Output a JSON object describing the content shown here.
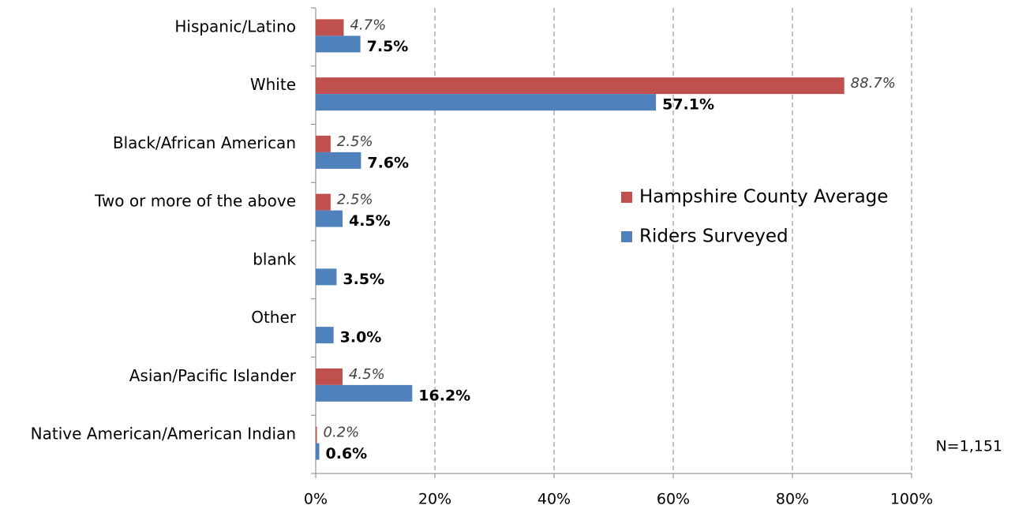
{
  "chart_data": {
    "type": "hbar",
    "categories": [
      "Hispanic/Latino",
      "White",
      "Black/African American",
      "Two or more of the above",
      "blank",
      "Other",
      "Asian/Pacific Islander",
      "Native American/American Indian"
    ],
    "series": [
      {
        "name": "Hampshire County Average",
        "color": "#c0504d",
        "values": [
          4.7,
          88.7,
          2.5,
          2.5,
          null,
          null,
          4.5,
          0.2
        ],
        "value_labels": [
          "4.7%",
          "88.7%",
          "2.5%",
          "2.5%",
          null,
          null,
          "4.5%",
          "0.2%"
        ]
      },
      {
        "name": "Riders Surveyed",
        "color": "#4f81bd",
        "values": [
          7.5,
          57.1,
          7.6,
          4.5,
          3.5,
          3.0,
          16.2,
          0.6
        ],
        "value_labels": [
          "7.5%",
          "57.1%",
          "7.6%",
          "4.5%",
          "3.5%",
          "3.0%",
          "16.2%",
          "0.6%"
        ]
      }
    ],
    "xlim": [
      0,
      100
    ],
    "xticks": [
      {
        "value": 0,
        "label": "0%"
      },
      {
        "value": 20,
        "label": "20%"
      },
      {
        "value": 40,
        "label": "40%"
      },
      {
        "value": 60,
        "label": "60%"
      },
      {
        "value": 80,
        "label": "80%"
      },
      {
        "value": 100,
        "label": "100%"
      }
    ],
    "grid": true,
    "annotation": "N=1,151"
  }
}
